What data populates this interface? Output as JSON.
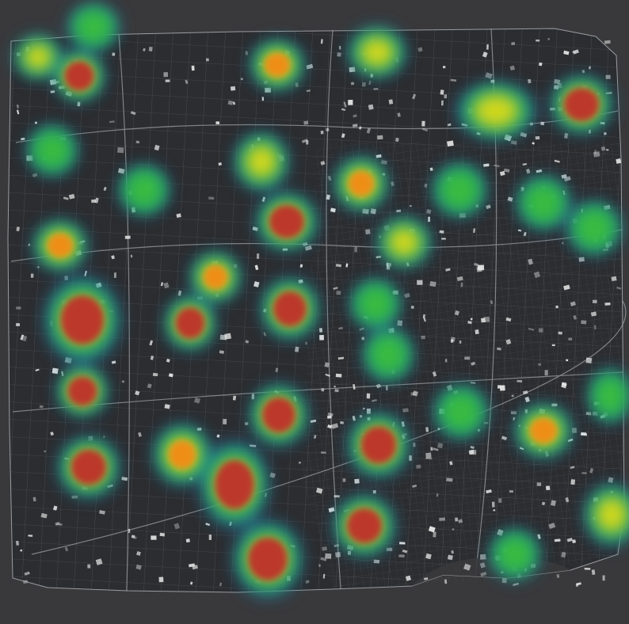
{
  "map": {
    "background_color": "#39393b",
    "land_color": "#2c2d30",
    "street_color": "#8a8c90",
    "building_color": "#e8e8e8",
    "heat_colors": [
      "#2b6fa8",
      "#1aa37a",
      "#3cbf3c",
      "#d8d81e",
      "#f08a18",
      "#b8342a"
    ]
  },
  "hotspots": [
    {
      "id": "hs-01",
      "intensity": 0.55
    },
    {
      "id": "hs-02",
      "intensity": 0.62
    },
    {
      "id": "hs-03",
      "intensity": 0.85
    },
    {
      "id": "hs-04",
      "intensity": 0.7
    },
    {
      "id": "hs-05",
      "intensity": 0.68
    },
    {
      "id": "hs-06",
      "intensity": 0.92
    },
    {
      "id": "hs-07",
      "intensity": 0.5
    },
    {
      "id": "hs-08",
      "intensity": 0.52
    },
    {
      "id": "hs-09",
      "intensity": 0.68
    },
    {
      "id": "hs-10",
      "intensity": 0.5
    },
    {
      "id": "hs-11",
      "intensity": 0.72
    },
    {
      "id": "hs-12",
      "intensity": 0.94
    },
    {
      "id": "hs-13",
      "intensity": 0.95
    },
    {
      "id": "hs-14",
      "intensity": 0.55
    },
    {
      "id": "hs-15",
      "intensity": 0.9
    },
    {
      "id": "hs-16",
      "intensity": 0.75
    },
    {
      "id": "hs-17",
      "intensity": 0.92
    },
    {
      "id": "hs-18",
      "intensity": 0.52
    },
    {
      "id": "hs-19",
      "intensity": 0.95
    },
    {
      "id": "hs-20",
      "intensity": 0.62
    },
    {
      "id": "hs-21",
      "intensity": 0.7
    },
    {
      "id": "hs-22",
      "intensity": 0.85
    },
    {
      "id": "hs-23",
      "intensity": 0.95
    },
    {
      "id": "hs-24",
      "intensity": 0.93
    },
    {
      "id": "hs-25",
      "intensity": 0.78
    },
    {
      "id": "hs-26",
      "intensity": 0.95
    },
    {
      "id": "hs-27",
      "intensity": 0.93
    },
    {
      "id": "hs-28",
      "intensity": 0.52
    },
    {
      "id": "hs-29",
      "intensity": 0.75
    },
    {
      "id": "hs-30",
      "intensity": 0.55
    },
    {
      "id": "hs-31",
      "intensity": 0.85
    },
    {
      "id": "hs-32",
      "intensity": 0.55
    },
    {
      "id": "hs-33",
      "intensity": 0.65
    },
    {
      "id": "hs-34",
      "intensity": 0.55
    },
    {
      "id": "hs-35",
      "intensity": 0.6
    },
    {
      "id": "hs-36",
      "intensity": 0.5
    }
  ]
}
